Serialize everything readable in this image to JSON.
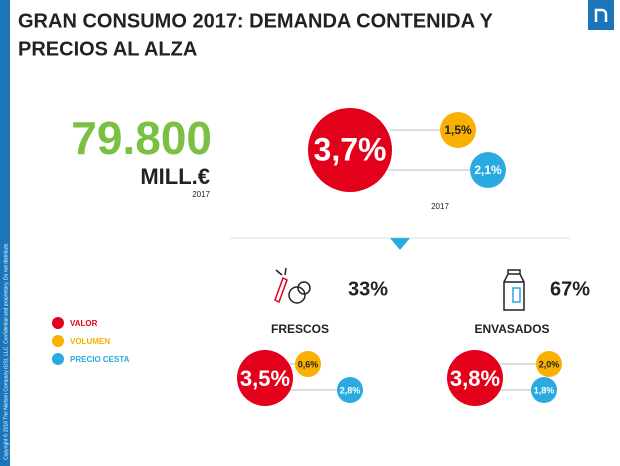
{
  "header": {
    "title_lines": [
      "GRAN CONSUMO 2017: DEMANDA CONTENIDA Y",
      "PRECIOS AL ALZA"
    ]
  },
  "total": {
    "value": "79.800",
    "unit": "MILL.€",
    "year": "2017"
  },
  "overall": {
    "valor": "3,7%",
    "volumen": "1,5%",
    "precio_cesta": "2,1%",
    "year": "2017"
  },
  "legend": [
    "VALOR",
    "VOLUMEN",
    "PRECIO CESTA"
  ],
  "segments": [
    {
      "name": "FRESCOS",
      "share": "33%",
      "valor": "3,5%",
      "volumen": "0,6%",
      "precio_cesta": "2,8%"
    },
    {
      "name": "ENVASADOS",
      "share": "67%",
      "valor": "3,8%",
      "volumen": "2,0%",
      "precio_cesta": "1,8%"
    }
  ],
  "copyright": "Copyright © 2018 The Nielsen Company (US), LLC. Confidential and proprietary. Do not distribute."
}
